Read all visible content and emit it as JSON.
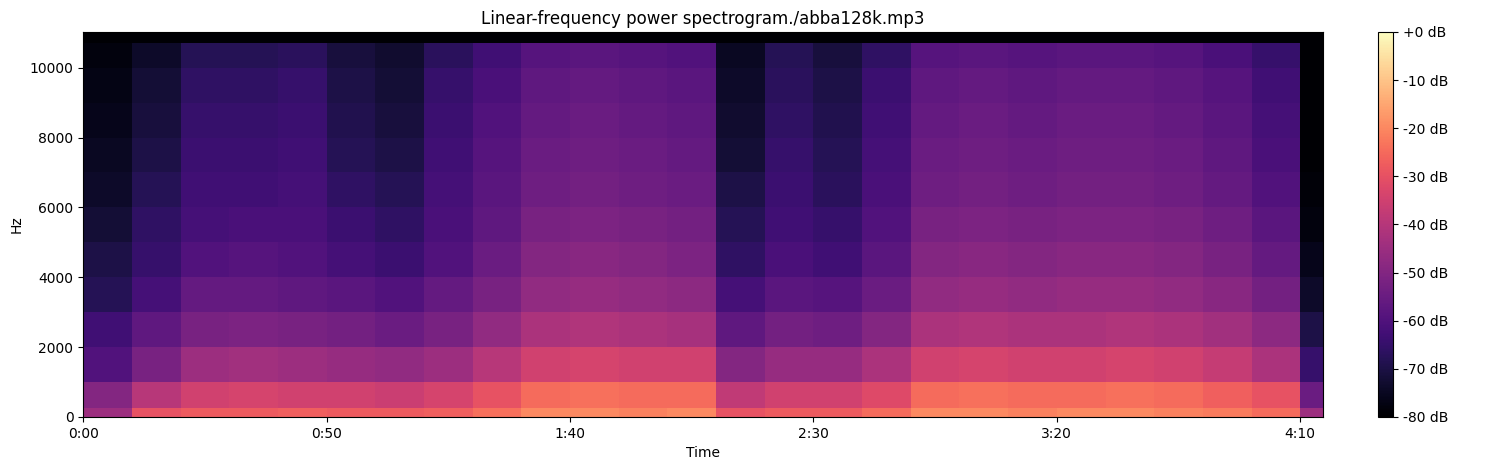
{
  "chart_data": {
    "type": "heatmap",
    "title": "Linear-frequency power spectrogram./abba128k.mp3",
    "x_label": "Time",
    "y_label": "Hz",
    "color": "magma",
    "x": [
      0,
      10,
      20,
      30,
      40,
      50,
      60,
      70,
      80,
      90,
      100,
      110,
      120,
      130,
      140,
      150,
      160,
      170,
      180,
      190,
      200,
      210,
      220,
      230,
      240,
      250,
      254.7
    ],
    "y": [
      0,
      250,
      1000,
      2000,
      3000,
      4000,
      5000,
      6000,
      7000,
      8000,
      9000,
      10000,
      10700,
      11025
    ],
    "cells": [
      [
        -45,
        -30,
        -28,
        -28,
        -27,
        -28,
        -28,
        -27,
        -24,
        -20,
        -20,
        -21,
        -20,
        -30,
        -28,
        -28,
        -25,
        -20,
        -20,
        -21,
        -20,
        -20,
        -21,
        -22,
        -25,
        -45
      ],
      [
        -50,
        -40,
        -35,
        -34,
        -35,
        -35,
        -36,
        -34,
        -30,
        -25,
        -24,
        -25,
        -25,
        -38,
        -35,
        -35,
        -32,
        -25,
        -24,
        -25,
        -25,
        -24,
        -25,
        -27,
        -30,
        -55
      ],
      [
        -60,
        -52,
        -45,
        -44,
        -45,
        -46,
        -47,
        -45,
        -40,
        -35,
        -34,
        -35,
        -35,
        -50,
        -46,
        -46,
        -42,
        -35,
        -34,
        -35,
        -35,
        -34,
        -35,
        -37,
        -42,
        -65
      ],
      [
        -63,
        -57,
        -52,
        -51,
        -52,
        -53,
        -55,
        -52,
        -47,
        -42,
        -41,
        -42,
        -43,
        -57,
        -53,
        -54,
        -50,
        -42,
        -41,
        -42,
        -42,
        -41,
        -42,
        -44,
        -48,
        -70
      ],
      [
        -68,
        -62,
        -56,
        -56,
        -57,
        -58,
        -60,
        -56,
        -52,
        -47,
        -46,
        -47,
        -48,
        -62,
        -58,
        -59,
        -55,
        -47,
        -46,
        -47,
        -46,
        -46,
        -47,
        -49,
        -53,
        -74
      ],
      [
        -70,
        -65,
        -60,
        -59,
        -60,
        -62,
        -64,
        -60,
        -55,
        -50,
        -49,
        -50,
        -51,
        -66,
        -61,
        -63,
        -58,
        -50,
        -49,
        -50,
        -49,
        -49,
        -50,
        -52,
        -56,
        -76
      ],
      [
        -72,
        -66,
        -62,
        -61,
        -61,
        -64,
        -66,
        -61,
        -57,
        -52,
        -51,
        -52,
        -53,
        -68,
        -63,
        -65,
        -60,
        -52,
        -51,
        -52,
        -51,
        -51,
        -52,
        -54,
        -58,
        -78
      ],
      [
        -74,
        -68,
        -63,
        -63,
        -62,
        -66,
        -68,
        -62,
        -58,
        -54,
        -53,
        -54,
        -55,
        -70,
        -64,
        -67,
        -61,
        -54,
        -53,
        -54,
        -53,
        -53,
        -54,
        -56,
        -60,
        -79
      ],
      [
        -75,
        -70,
        -64,
        -64,
        -63,
        -68,
        -70,
        -63,
        -59,
        -55,
        -54,
        -55,
        -56,
        -72,
        -65,
        -68,
        -62,
        -55,
        -54,
        -55,
        -54,
        -54,
        -55,
        -57,
        -61,
        -80
      ],
      [
        -76,
        -71,
        -65,
        -65,
        -64,
        -69,
        -71,
        -64,
        -60,
        -56,
        -55,
        -56,
        -57,
        -73,
        -66,
        -69,
        -63,
        -56,
        -55,
        -56,
        -55,
        -55,
        -56,
        -58,
        -62,
        -80
      ],
      [
        -77,
        -72,
        -66,
        -66,
        -65,
        -70,
        -72,
        -65,
        -61,
        -57,
        -56,
        -57,
        -58,
        -74,
        -67,
        -70,
        -64,
        -57,
        -56,
        -57,
        -56,
        -56,
        -57,
        -59,
        -63,
        -80
      ],
      [
        -78,
        -74,
        -68,
        -68,
        -67,
        -71,
        -73,
        -67,
        -63,
        -59,
        -58,
        -59,
        -60,
        -75,
        -68,
        -71,
        -66,
        -59,
        -58,
        -59,
        -58,
        -58,
        -59,
        -61,
        -65,
        -80
      ],
      [
        -80,
        -80,
        -80,
        -80,
        -80,
        -80,
        -80,
        -80,
        -80,
        -80,
        -80,
        -80,
        -80,
        -80,
        -80,
        -80,
        -80,
        -80,
        -80,
        -80,
        -80,
        -80,
        -80,
        -80,
        -80,
        -80
      ]
    ],
    "xlim": [
      0,
      254.7
    ],
    "ylim": [
      0,
      11025
    ],
    "xticks": [
      {
        "value": 0,
        "label": "0:00"
      },
      {
        "value": 50,
        "label": "0:50"
      },
      {
        "value": 100,
        "label": "1:40"
      },
      {
        "value": 150,
        "label": "2:30"
      },
      {
        "value": 200,
        "label": "3:20"
      },
      {
        "value": 250,
        "label": "4:10"
      }
    ],
    "yticks": [
      0,
      2000,
      4000,
      6000,
      8000,
      10000
    ],
    "colorbar": {
      "range": [
        -80,
        0
      ],
      "ticks": [
        {
          "value": 0,
          "label": "+0 dB"
        },
        {
          "value": -10,
          "label": "-10 dB"
        },
        {
          "value": -20,
          "label": "-20 dB"
        },
        {
          "value": -30,
          "label": "-30 dB"
        },
        {
          "value": -40,
          "label": "-40 dB"
        },
        {
          "value": -50,
          "label": "-50 dB"
        },
        {
          "value": -60,
          "label": "-60 dB"
        },
        {
          "value": -70,
          "label": "-70 dB"
        },
        {
          "value": -80,
          "label": "-80 dB"
        }
      ]
    }
  }
}
